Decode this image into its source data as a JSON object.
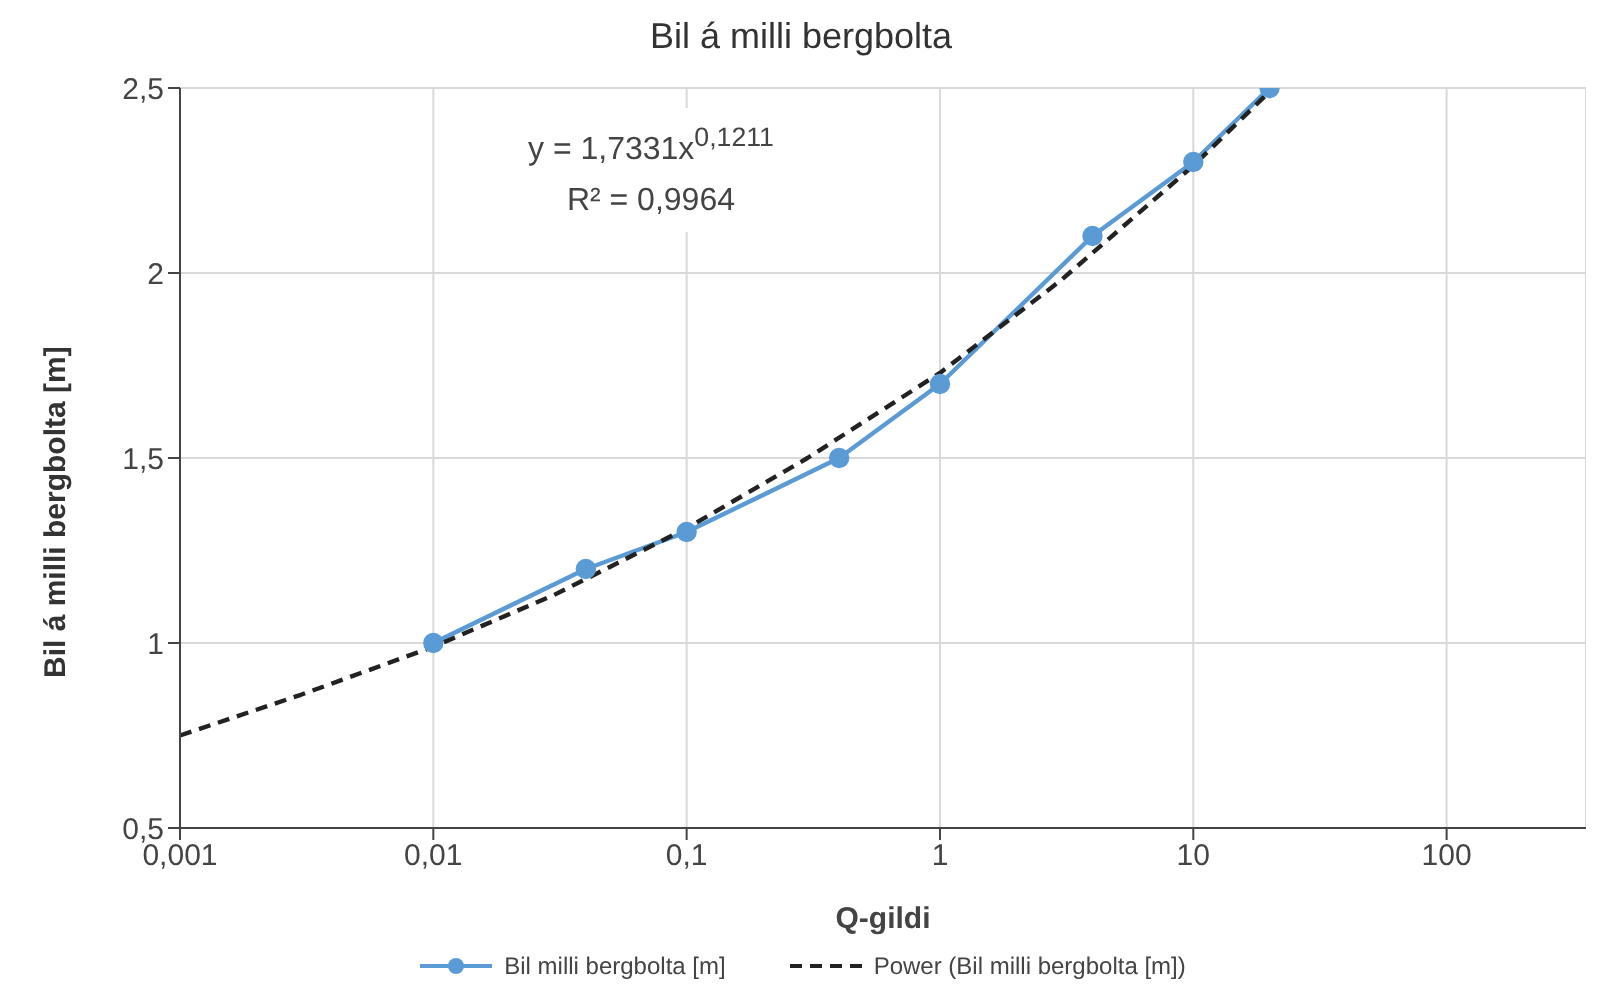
{
  "chart_data": {
    "type": "line",
    "title": "Bil á milli bergbolta",
    "xlabel": "Q-gildi",
    "ylabel": "Bil á milli bergbolta [m]",
    "log": "x",
    "grid": true,
    "legend": "bottom",
    "xlim": [
      0.001,
      355
    ],
    "ylim": [
      0.5,
      2.5
    ],
    "xticks": [
      {
        "value": 0.001,
        "label": "0,001"
      },
      {
        "value": 0.01,
        "label": "0,01"
      },
      {
        "value": 0.1,
        "label": "0,1"
      },
      1,
      10,
      100
    ],
    "yticks": [
      {
        "value": 0.5,
        "label": "0,5"
      },
      1,
      {
        "value": 1.5,
        "label": "1,5"
      },
      2,
      {
        "value": 2.5,
        "label": "2,5"
      }
    ],
    "annotations": [
      "y = 1,7331x$^{0,1211}$",
      "R² = 0,9964"
    ],
    "series": [
      {
        "name": "Bil milli bergbolta [m]",
        "color": "#5b9bd5",
        "marker": "circle",
        "line_style": "solid",
        "x": [
          0.01,
          0.04,
          0.1,
          0.4,
          1,
          4,
          10,
          20
        ],
        "values": [
          1,
          1.2,
          1.3,
          1.5,
          1.7,
          2.1,
          2.3,
          2.5
        ]
      },
      {
        "name": "Power (Bil milli bergbolta [m])",
        "color": "#222222",
        "marker": "none",
        "line_style": "dashed",
        "x": [
          0.001,
          0.003,
          0.01,
          0.03,
          0.1,
          0.3,
          1,
          3,
          10,
          20
        ],
        "values": [
          0.75,
          0.86,
          0.99,
          1.13,
          1.31,
          1.5,
          1.73,
          1.98,
          2.29,
          2.49
        ]
      }
    ]
  }
}
